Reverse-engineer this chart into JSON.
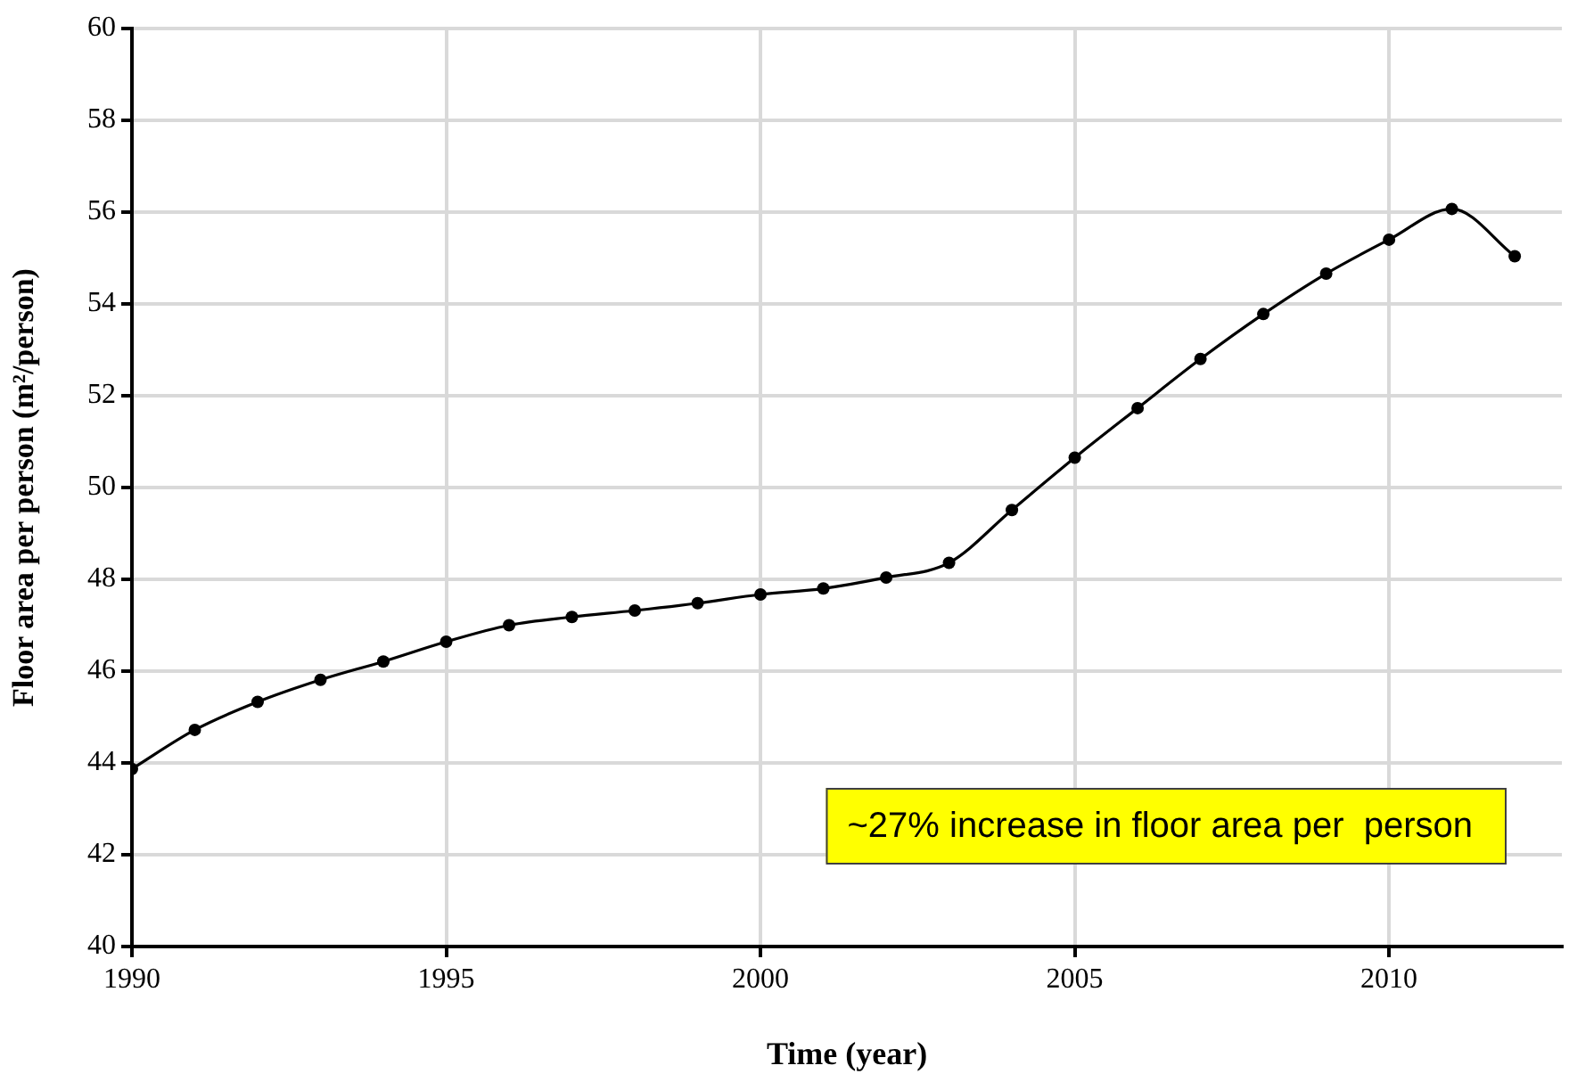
{
  "chart_data": {
    "type": "line",
    "xlabel": "Time (year)",
    "ylabel": "Floor area per person (m²/person)",
    "x": [
      1990,
      1991,
      1992,
      1993,
      1994,
      1995,
      1996,
      1997,
      1998,
      1999,
      2000,
      2001,
      2002,
      2003,
      2004,
      2005,
      2006,
      2007,
      2008,
      2009,
      2010,
      2011,
      2012
    ],
    "series": [
      {
        "color": "#000000",
        "values": [
          43.87,
          44.72,
          45.33,
          45.81,
          46.21,
          46.64,
          47.0,
          47.18,
          47.32,
          47.48,
          47.67,
          47.8,
          48.04,
          48.36,
          49.51,
          50.65,
          51.73,
          52.8,
          53.78,
          54.66,
          55.4,
          56.07,
          55.04
        ]
      }
    ],
    "xlim": [
      1990,
      2012.75
    ],
    "xticks": [
      1990,
      1995,
      2000,
      2005,
      2010
    ],
    "ylim": [
      40,
      60
    ],
    "yticks": [
      40,
      42,
      44,
      46,
      48,
      50,
      52,
      54,
      56,
      58,
      60
    ],
    "grid": true,
    "legend": false,
    "marker": "circle",
    "line_style": "solid",
    "annotations": [
      "~27% increase in floor area per  person"
    ]
  }
}
